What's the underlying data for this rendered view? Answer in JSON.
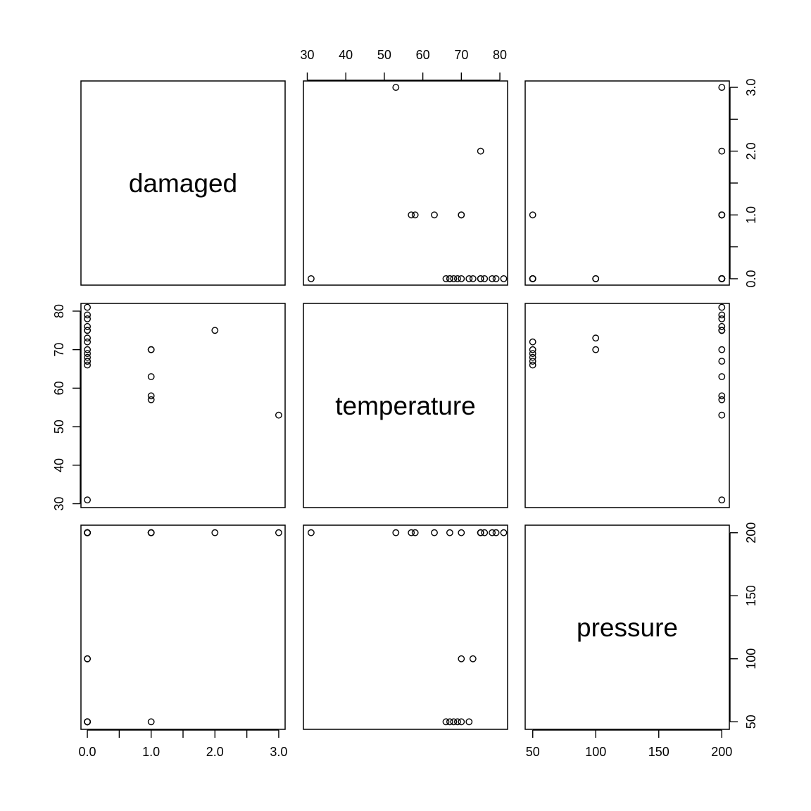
{
  "chart_data": {
    "type": "scatter-matrix",
    "variables": [
      "damaged",
      "temperature",
      "pressure"
    ],
    "axes": {
      "damaged": {
        "ticks": [
          0,
          0.5,
          1,
          1.5,
          2,
          2.5,
          3
        ],
        "tick_labels": [
          {
            "value": 0,
            "text": "0.0"
          },
          {
            "value": 1,
            "text": "1.0"
          },
          {
            "value": 2,
            "text": "2.0"
          },
          {
            "value": 3,
            "text": "3.0"
          }
        ],
        "lim": [
          -0.1,
          3.1
        ]
      },
      "temperature": {
        "ticks": [
          30,
          40,
          50,
          60,
          70,
          80
        ],
        "tick_labels": [
          {
            "value": 30,
            "text": "30"
          },
          {
            "value": 40,
            "text": "40"
          },
          {
            "value": 50,
            "text": "50"
          },
          {
            "value": 60,
            "text": "60"
          },
          {
            "value": 70,
            "text": "70"
          },
          {
            "value": 80,
            "text": "80"
          }
        ],
        "lim": [
          29,
          82
        ]
      },
      "pressure": {
        "ticks": [
          50,
          100,
          150,
          200
        ],
        "tick_labels": [
          {
            "value": 50,
            "text": "50"
          },
          {
            "value": 100,
            "text": "100"
          },
          {
            "value": 150,
            "text": "150"
          },
          {
            "value": 200,
            "text": "200"
          }
        ],
        "lim": [
          44,
          206
        ]
      }
    },
    "points": [
      {
        "damaged": 0,
        "temperature": 66,
        "pressure": 50
      },
      {
        "damaged": 1,
        "temperature": 70,
        "pressure": 50
      },
      {
        "damaged": 0,
        "temperature": 69,
        "pressure": 50
      },
      {
        "damaged": 0,
        "temperature": 68,
        "pressure": 50
      },
      {
        "damaged": 0,
        "temperature": 67,
        "pressure": 50
      },
      {
        "damaged": 0,
        "temperature": 72,
        "pressure": 50
      },
      {
        "damaged": 0,
        "temperature": 73,
        "pressure": 100
      },
      {
        "damaged": 0,
        "temperature": 70,
        "pressure": 100
      },
      {
        "damaged": 1,
        "temperature": 57,
        "pressure": 200
      },
      {
        "damaged": 1,
        "temperature": 63,
        "pressure": 200
      },
      {
        "damaged": 1,
        "temperature": 70,
        "pressure": 200
      },
      {
        "damaged": 0,
        "temperature": 78,
        "pressure": 200
      },
      {
        "damaged": 0,
        "temperature": 67,
        "pressure": 200
      },
      {
        "damaged": 2,
        "temperature": 75,
        "pressure": 200
      },
      {
        "damaged": 0,
        "temperature": 76,
        "pressure": 200
      },
      {
        "damaged": 0,
        "temperature": 79,
        "pressure": 200
      },
      {
        "damaged": 0,
        "temperature": 75,
        "pressure": 200
      },
      {
        "damaged": 3,
        "temperature": 53,
        "pressure": 200
      },
      {
        "damaged": 0,
        "temperature": 75,
        "pressure": 200
      },
      {
        "damaged": 0,
        "temperature": 81,
        "pressure": 200
      },
      {
        "damaged": 1,
        "temperature": 58,
        "pressure": 200
      },
      {
        "damaged": 0,
        "temperature": 31,
        "pressure": 200
      }
    ],
    "grid": false,
    "point_marker": "open-circle"
  }
}
